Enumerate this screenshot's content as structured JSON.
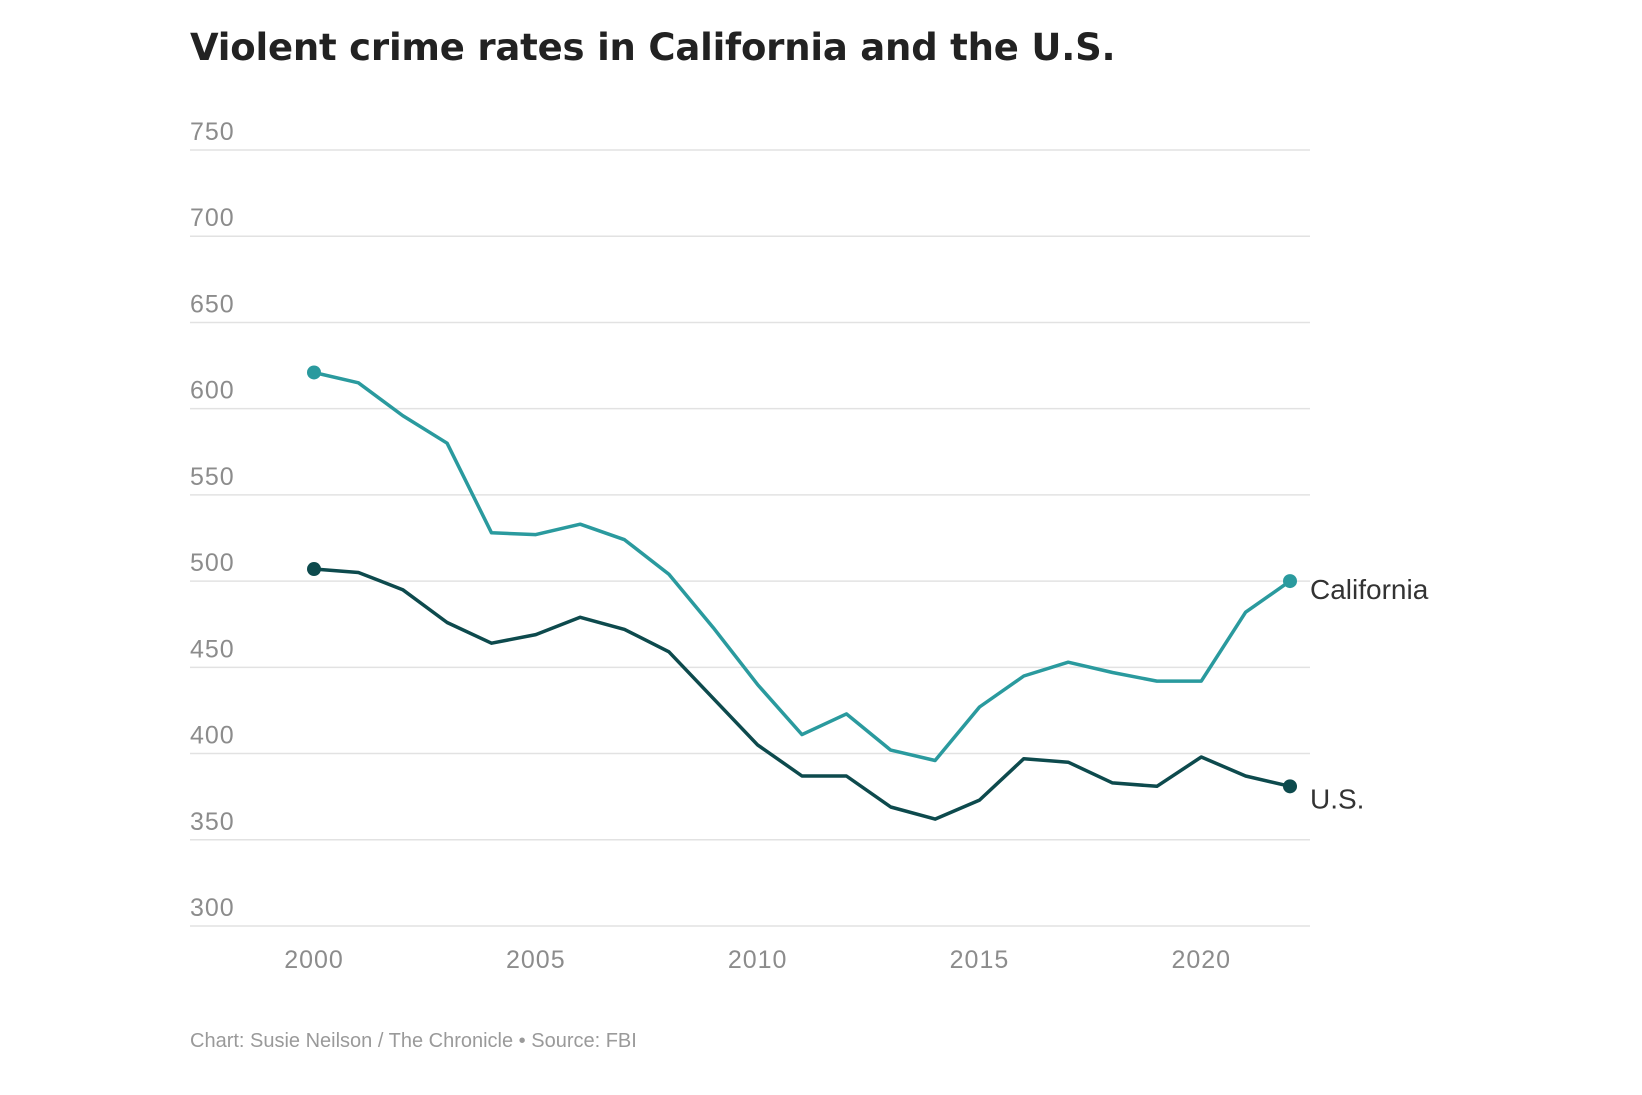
{
  "title": "Violent crime rates in California and the U.S.",
  "credit": "Chart: Susie Neilson / The Chronicle • Source: FBI",
  "colors": {
    "california": "#2a9a9e",
    "us": "#0d4a4d",
    "grid": "#e2e2e2",
    "tick_text": "#8c8c8c"
  },
  "chart_data": {
    "type": "line",
    "title": "Violent crime rates in California and the U.S.",
    "xlabel": "",
    "ylabel": "",
    "xlim": [
      1997.2,
      2024.5
    ],
    "ylim": [
      300,
      750
    ],
    "yticks": [
      300,
      350,
      400,
      450,
      500,
      550,
      600,
      650,
      700,
      750
    ],
    "xticks": [
      2000,
      2005,
      2010,
      2015,
      2020
    ],
    "grid": "horizontal",
    "legend": "direct labels at line ends",
    "x": [
      2000,
      2001,
      2002,
      2003,
      2004,
      2005,
      2006,
      2007,
      2008,
      2009,
      2010,
      2011,
      2012,
      2013,
      2014,
      2015,
      2016,
      2017,
      2018,
      2019,
      2020,
      2021,
      2022
    ],
    "series": [
      {
        "name": "California",
        "color": "#2a9a9e",
        "values": [
          621,
          615,
          596,
          580,
          528,
          527,
          533,
          524,
          504,
          473,
          440,
          411,
          423,
          402,
          396,
          427,
          445,
          453,
          447,
          442,
          442,
          482,
          500
        ]
      },
      {
        "name": "U.S.",
        "color": "#0d4a4d",
        "values": [
          507,
          505,
          495,
          476,
          464,
          469,
          479,
          472,
          459,
          432,
          405,
          387,
          387,
          369,
          362,
          373,
          397,
          395,
          383,
          381,
          398,
          387,
          381
        ]
      }
    ]
  }
}
